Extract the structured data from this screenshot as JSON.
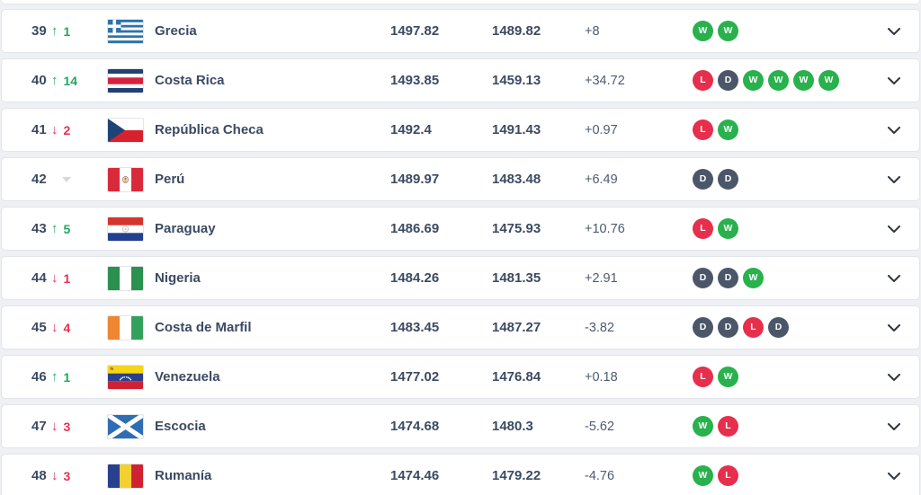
{
  "table": {
    "rows": [
      {
        "rank": "39",
        "movement": {
          "direction": "up",
          "places": "1"
        },
        "flag": "greece",
        "country": "Grecia",
        "points": "1497.82",
        "previous_points": "1489.82",
        "points_change": "+8",
        "last_matches": [
          "W",
          "W"
        ]
      },
      {
        "rank": "40",
        "movement": {
          "direction": "up",
          "places": "14"
        },
        "flag": "costa-rica",
        "country": "Costa Rica",
        "points": "1493.85",
        "previous_points": "1459.13",
        "points_change": "+34.72",
        "last_matches": [
          "L",
          "D",
          "W",
          "W",
          "W",
          "W"
        ]
      },
      {
        "rank": "41",
        "movement": {
          "direction": "down",
          "places": "2"
        },
        "flag": "czech-republic",
        "country": "República Checa",
        "points": "1492.4",
        "previous_points": "1491.43",
        "points_change": "+0.97",
        "last_matches": [
          "L",
          "W"
        ]
      },
      {
        "rank": "42",
        "movement": {
          "direction": "none",
          "places": ""
        },
        "flag": "peru",
        "country": "Perú",
        "points": "1489.97",
        "previous_points": "1483.48",
        "points_change": "+6.49",
        "last_matches": [
          "D",
          "D"
        ]
      },
      {
        "rank": "43",
        "movement": {
          "direction": "up",
          "places": "5"
        },
        "flag": "paraguay",
        "country": "Paraguay",
        "points": "1486.69",
        "previous_points": "1475.93",
        "points_change": "+10.76",
        "last_matches": [
          "L",
          "W"
        ]
      },
      {
        "rank": "44",
        "movement": {
          "direction": "down",
          "places": "1"
        },
        "flag": "nigeria",
        "country": "Nigeria",
        "points": "1484.26",
        "previous_points": "1481.35",
        "points_change": "+2.91",
        "last_matches": [
          "D",
          "D",
          "W"
        ]
      },
      {
        "rank": "45",
        "movement": {
          "direction": "down",
          "places": "4"
        },
        "flag": "ivory-coast",
        "country": "Costa de Marfil",
        "points": "1483.45",
        "previous_points": "1487.27",
        "points_change": "-3.82",
        "last_matches": [
          "D",
          "D",
          "L",
          "D"
        ]
      },
      {
        "rank": "46",
        "movement": {
          "direction": "up",
          "places": "1"
        },
        "flag": "venezuela",
        "country": "Venezuela",
        "points": "1477.02",
        "previous_points": "1476.84",
        "points_change": "+0.18",
        "last_matches": [
          "L",
          "W"
        ]
      },
      {
        "rank": "47",
        "movement": {
          "direction": "down",
          "places": "3"
        },
        "flag": "scotland",
        "country": "Escocia",
        "points": "1474.68",
        "previous_points": "1480.3",
        "points_change": "-5.62",
        "last_matches": [
          "W",
          "L"
        ]
      },
      {
        "rank": "48",
        "movement": {
          "direction": "down",
          "places": "3"
        },
        "flag": "romania",
        "country": "Rumanía",
        "points": "1474.46",
        "previous_points": "1479.22",
        "points_change": "-4.76",
        "last_matches": [
          "W",
          "L"
        ]
      }
    ]
  },
  "icons": {
    "up_arrow": "↑",
    "down_arrow": "↓",
    "chevron": "chevron-down"
  },
  "colors": {
    "up_green": "#1fa85c",
    "down_red": "#e8304f",
    "win_badge": "#28b14c",
    "draw_badge": "#4b5769",
    "loss_badge": "#e62e4d",
    "text_dark": "#3b4a63",
    "row_border": "#e2e5e9",
    "page_background": "#eef0f3",
    "chevron": "#2f3640"
  }
}
